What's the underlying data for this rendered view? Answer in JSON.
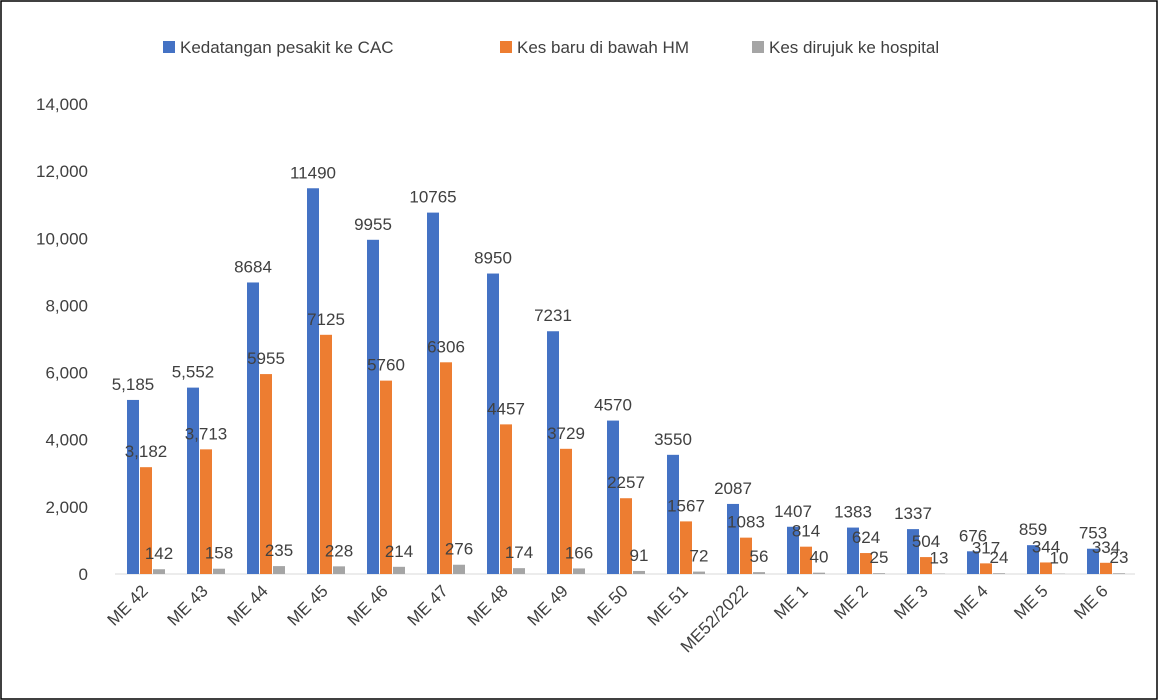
{
  "chart_data": {
    "type": "bar",
    "categories": [
      "ME 42",
      "ME 43",
      "ME 44",
      "ME 45",
      "ME 46",
      "ME 47",
      "ME 48",
      "ME 49",
      "ME 50",
      "ME 51",
      "ME52/2022",
      "ME 1",
      "ME 2",
      "ME 3",
      "ME 4",
      "ME 5",
      "ME 6"
    ],
    "series": [
      {
        "name": "Kedatangan pesakit ke CAC",
        "color": "#4472c4",
        "values": [
          5185,
          5552,
          8684,
          11490,
          9955,
          10765,
          8950,
          7231,
          4570,
          3550,
          2087,
          1407,
          1383,
          1337,
          676,
          859,
          753
        ],
        "value_labels": [
          "5,185",
          "5,552",
          "8684",
          "11490",
          "9955",
          "10765",
          "8950",
          "7231",
          "4570",
          "3550",
          "2087",
          "1407",
          "1383",
          "1337",
          "676",
          "859",
          "753"
        ]
      },
      {
        "name": "Kes baru di bawah HM",
        "color": "#ed7d31",
        "values": [
          3182,
          3713,
          5955,
          7125,
          5760,
          6306,
          4457,
          3729,
          2257,
          1567,
          1083,
          814,
          624,
          504,
          317,
          344,
          334
        ],
        "value_labels": [
          "3,182",
          "3,713",
          "5955",
          "7125",
          "5760",
          "6306",
          "4457",
          "3729",
          "2257",
          "1567",
          "1083",
          "814",
          "624",
          "504",
          "317",
          "344",
          "334"
        ]
      },
      {
        "name": "Kes dirujuk ke hospital",
        "color": "#a5a5a5",
        "values": [
          142,
          158,
          235,
          228,
          214,
          276,
          174,
          166,
          91,
          72,
          56,
          40,
          25,
          13,
          24,
          10,
          23
        ]
      }
    ],
    "ylim": [
      0,
      14000
    ],
    "yticks": [
      0,
      {
        "value": 2000,
        "label": "2,000"
      },
      {
        "value": 4000,
        "label": "4,000"
      },
      {
        "value": 6000,
        "label": "6,000"
      },
      {
        "value": 8000,
        "label": "8,000"
      },
      {
        "value": 10000,
        "label": "10,000"
      },
      {
        "value": 12000,
        "label": "12,000"
      },
      {
        "value": 14000,
        "label": "14,000"
      }
    ],
    "grid": false,
    "legend": "top"
  }
}
